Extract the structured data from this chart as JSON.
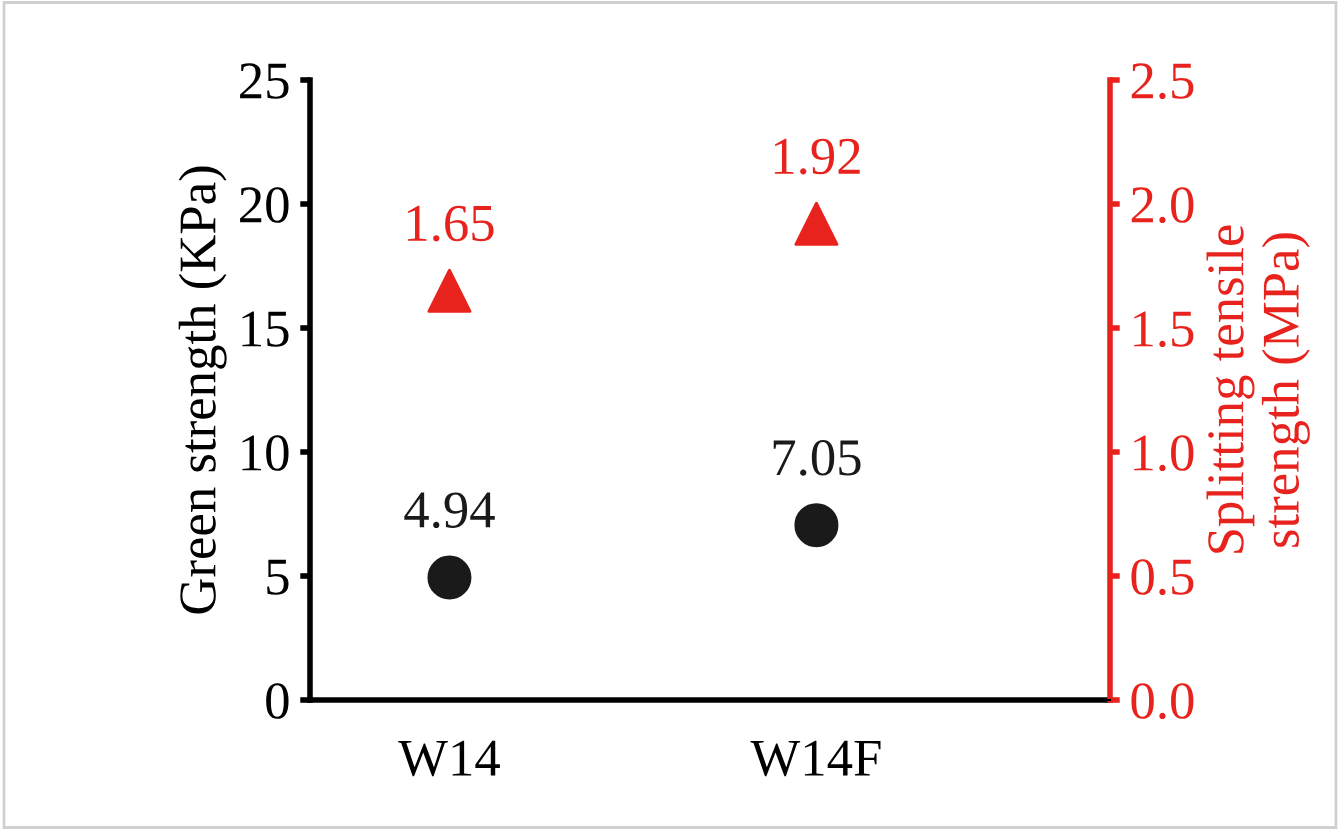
{
  "chart_data": {
    "type": "scatter",
    "ylabel": "Green strength (KPa)",
    "y2label": "Splitting tensile strength (MPa)",
    "categories": [
      "W14",
      "W14F"
    ],
    "series": [
      {
        "color": "#1a1a1a",
        "marker": "circle",
        "values": [
          4.94,
          7.05
        ]
      },
      {
        "color": "#e8231e",
        "marker": "triangle",
        "axis": "y2",
        "values": [
          1.65,
          1.92
        ]
      }
    ],
    "ylim": [
      0,
      25
    ],
    "yticks": [
      0,
      5,
      10,
      15,
      20,
      25
    ],
    "y2lim": [
      0,
      2.5
    ],
    "y2ticks": [
      {
        "value": 0,
        "label": "0.0"
      },
      {
        "value": 0.5,
        "label": "0.5"
      },
      {
        "value": 1,
        "label": "1.0"
      },
      {
        "value": 1.5,
        "label": "1.5"
      },
      {
        "value": 2,
        "label": "2.0"
      },
      {
        "value": 2.5,
        "label": "2.5"
      }
    ],
    "data_labels": true,
    "grid": false,
    "legend": false
  }
}
